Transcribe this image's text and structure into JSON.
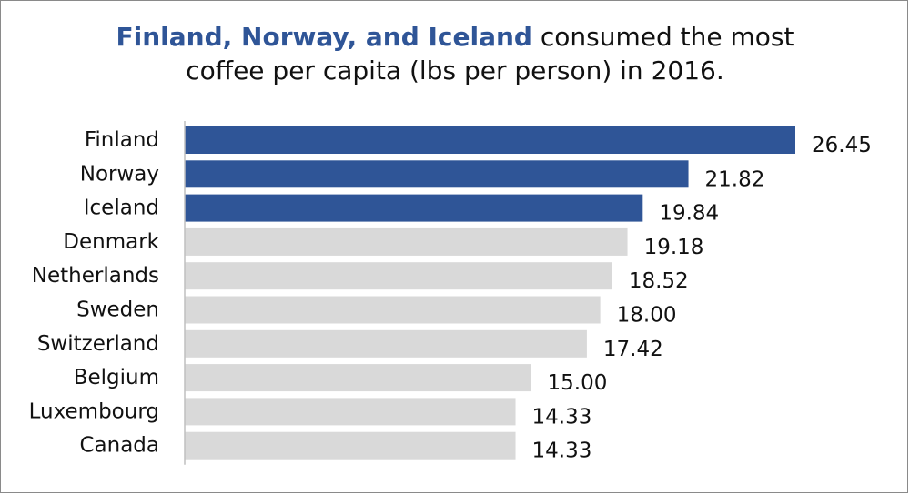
{
  "title": {
    "highlight": "Finland, Norway, and Iceland",
    "line1_rest": " consumed the most",
    "line2": "coffee per capita (lbs per person) in 2016."
  },
  "colors": {
    "highlight": "#2f5597",
    "default": "#d9d9d9",
    "axis": "#bfbfbf"
  },
  "chart_data": {
    "type": "bar",
    "orientation": "horizontal",
    "title": "Finland, Norway, and Iceland consumed the most coffee per capita (lbs per person) in 2016.",
    "xlabel": "",
    "ylabel": "",
    "xlim": [
      0,
      26.45
    ],
    "grid": false,
    "legend": "none",
    "categories": [
      "Finland",
      "Norway",
      "Iceland",
      "Denmark",
      "Netherlands",
      "Sweden",
      "Switzerland",
      "Belgium",
      "Luxembourg",
      "Canada"
    ],
    "values": [
      26.45,
      21.82,
      19.84,
      19.18,
      18.52,
      18.0,
      17.42,
      15.0,
      14.33,
      14.33
    ],
    "value_labels": [
      "26.45",
      "21.82",
      "19.84",
      "19.18",
      "18.52",
      "18.00",
      "17.42",
      "15.00",
      "14.33",
      "14.33"
    ],
    "highlighted": [
      true,
      true,
      true,
      false,
      false,
      false,
      false,
      false,
      false,
      false
    ]
  }
}
